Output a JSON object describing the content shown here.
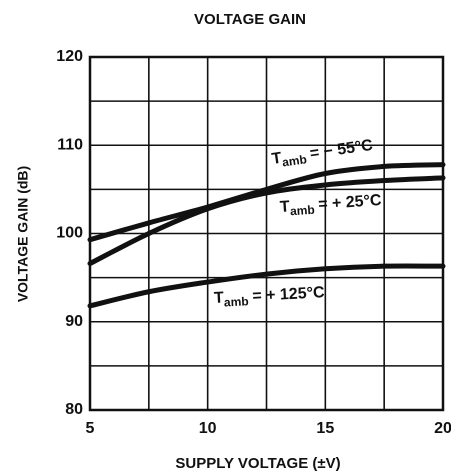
{
  "chart_data": {
    "type": "line",
    "title": "VOLTAGE GAIN",
    "x_label": "SUPPLY VOLTAGE (±V)",
    "y_label": "VOLTAGE GAIN (dB)",
    "x": [
      5,
      7.5,
      10,
      12.5,
      15,
      17.5,
      20
    ],
    "series": [
      {
        "label": {
          "main": "T",
          "sub": "amb",
          "rest": "= − 55°C"
        },
        "color": "#111111",
        "values": [
          99.3,
          101.2,
          103,
          105,
          106.8,
          107.6,
          107.8
        ]
      },
      {
        "label": {
          "main": "T",
          "sub": "amb",
          "rest": "= + 25°C"
        },
        "color": "#111111",
        "values": [
          96.6,
          100,
          102.8,
          104.6,
          105.5,
          106,
          106.3
        ]
      },
      {
        "label": {
          "main": "T",
          "sub": "amb",
          "rest": "= + 125°C"
        },
        "color": "#111111",
        "values": [
          91.8,
          93.4,
          94.5,
          95.4,
          96,
          96.3,
          96.3
        ]
      }
    ],
    "xlim": [
      5,
      20
    ],
    "xticks": [
      5,
      10,
      15,
      20
    ],
    "ylim": [
      80,
      120
    ],
    "yticks": [
      80,
      90,
      100,
      110,
      120
    ],
    "grid": true,
    "grid_minor_divisions": 2
  }
}
